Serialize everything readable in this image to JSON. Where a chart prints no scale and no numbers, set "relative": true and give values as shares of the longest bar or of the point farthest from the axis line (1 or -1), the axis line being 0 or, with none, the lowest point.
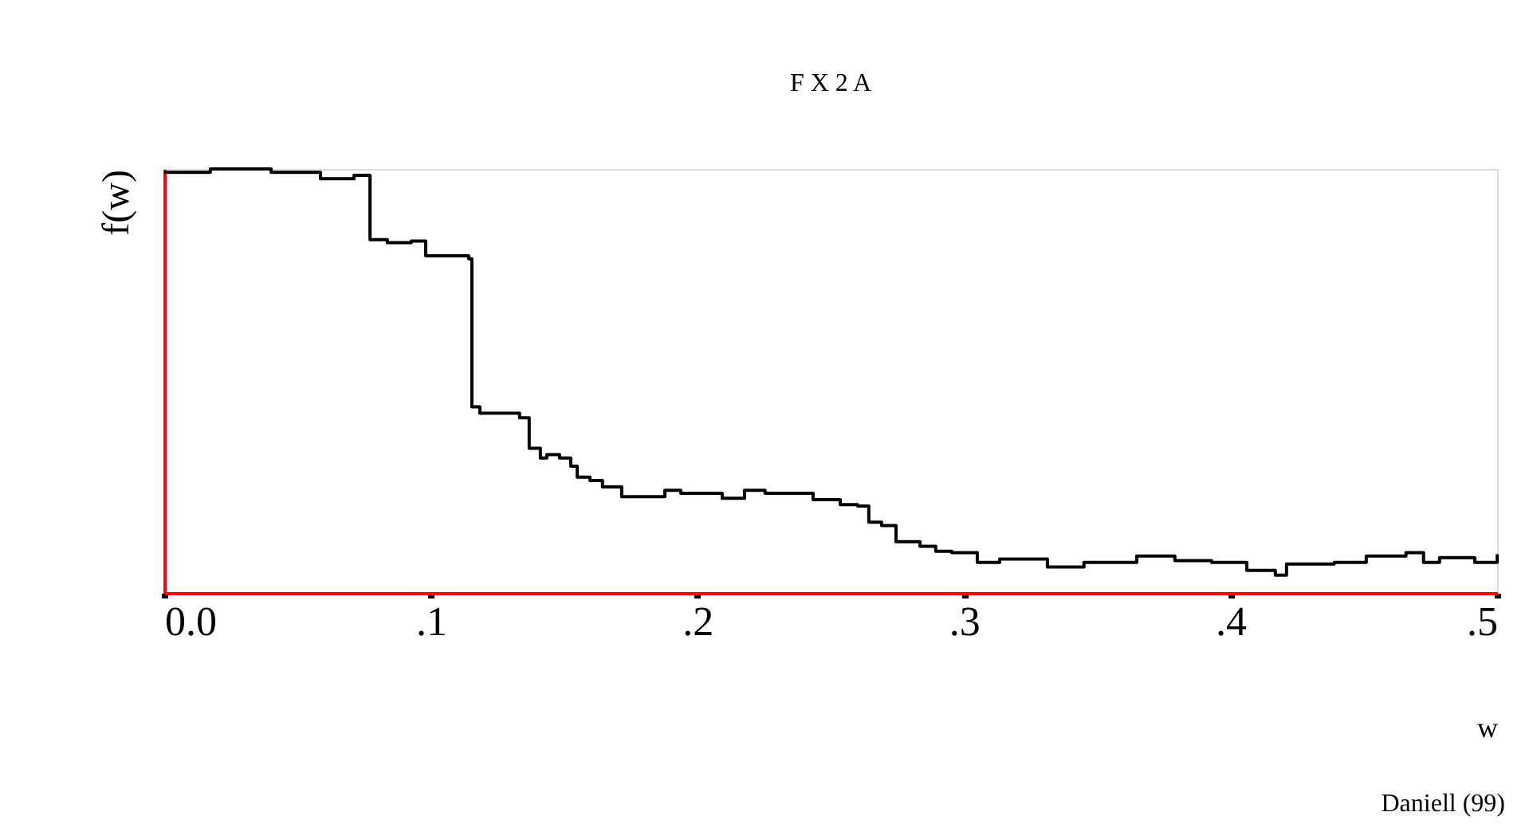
{
  "chart_data": {
    "type": "step",
    "title": "F X 2 A",
    "xlabel": "w",
    "ylabel": "f(w)",
    "annotations": [
      "Daniell (99)"
    ],
    "relative": true,
    "xlim": [
      0,
      0.5
    ],
    "xticks": [
      {
        "value": 0,
        "label": "0.0"
      },
      {
        "value": 0.1,
        "label": ".1"
      },
      {
        "value": 0.2,
        "label": ".2"
      },
      {
        "value": 0.3,
        "label": ".3"
      },
      {
        "value": 0.4,
        "label": ".4"
      },
      {
        "value": 0.5,
        "label": ".5"
      }
    ],
    "series": [
      {
        "color": "#000000",
        "x": [
          0,
          0.0173,
          0.0401,
          0.0413,
          0.0568,
          0.0586,
          0.07,
          0.0712,
          0.0748,
          0.0772,
          0.0837,
          0.0909,
          0.0927,
          0.0981,
          0.113,
          0.1142,
          0.1154,
          0.1184,
          0.1286,
          0.1333,
          0.1369,
          0.1411,
          0.1435,
          0.1483,
          0.1525,
          0.1549,
          0.1597,
          0.1644,
          0.1716,
          0.1794,
          0.1878,
          0.1938,
          0.2033,
          0.2093,
          0.2177,
          0.2254,
          0.2374,
          0.2434,
          0.2536,
          0.2601,
          0.2643,
          0.2691,
          0.2745,
          0.2835,
          0.2894,
          0.2954,
          0.305,
          0.3134,
          0.3313,
          0.345,
          0.3648,
          0.3791,
          0.3929,
          0.4037,
          0.4061,
          0.4108,
          0.4168,
          0.421,
          0.4288,
          0.4389,
          0.4509,
          0.4658,
          0.4724,
          0.4784,
          0.4916,
          0.5
        ],
        "values": [
          0.992,
          1.0,
          0.992,
          0.992,
          0.992,
          0.977,
          0.977,
          0.985,
          0.985,
          0.833,
          0.826,
          0.826,
          0.83,
          0.795,
          0.795,
          0.788,
          0.439,
          0.424,
          0.424,
          0.413,
          0.341,
          0.318,
          0.326,
          0.318,
          0.299,
          0.273,
          0.265,
          0.25,
          0.227,
          0.227,
          0.242,
          0.235,
          0.235,
          0.223,
          0.242,
          0.235,
          0.235,
          0.22,
          0.208,
          0.205,
          0.167,
          0.159,
          0.121,
          0.11,
          0.098,
          0.095,
          0.072,
          0.08,
          0.061,
          0.072,
          0.087,
          0.076,
          0.072,
          0.072,
          0.053,
          0.053,
          0.042,
          0.068,
          0.068,
          0.072,
          0.087,
          0.095,
          0.072,
          0.083,
          0.072,
          0.091
        ]
      }
    ]
  }
}
